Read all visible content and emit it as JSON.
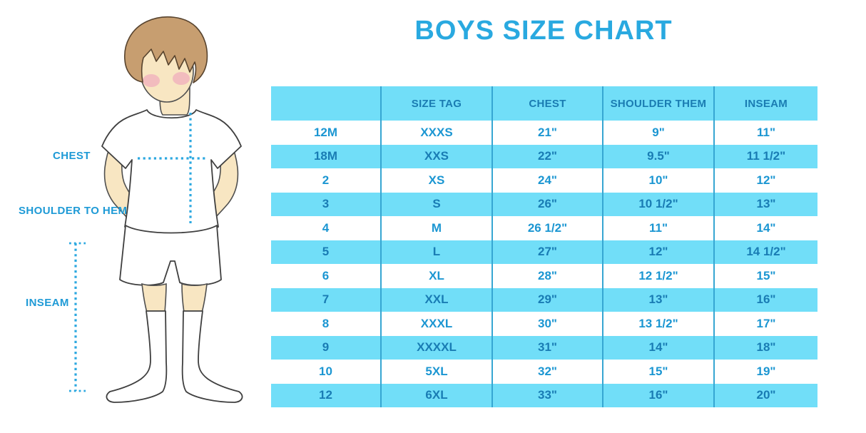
{
  "chart_data": {
    "type": "table",
    "title": "BOYS SIZE CHART",
    "columns": [
      "",
      "SIZE TAG",
      "CHEST",
      "SHOULDER THEM",
      "INSEAM"
    ],
    "rows": [
      [
        "12M",
        "XXXS",
        "21\"",
        "9\"",
        "11\""
      ],
      [
        "18M",
        "XXS",
        "22\"",
        "9.5\"",
        "11 1/2\""
      ],
      [
        "2",
        "XS",
        "24\"",
        "10\"",
        "12\""
      ],
      [
        "3",
        "S",
        "26\"",
        "10 1/2\"",
        "13\""
      ],
      [
        "4",
        "M",
        "26 1/2\"",
        "11\"",
        "14\""
      ],
      [
        "5",
        "L",
        "27\"",
        "12\"",
        "14 1/2\""
      ],
      [
        "6",
        "XL",
        "28\"",
        "12 1/2\"",
        "15\""
      ],
      [
        "7",
        "XXL",
        "29\"",
        "13\"",
        "16\""
      ],
      [
        "8",
        "XXXL",
        "30\"",
        "13 1/2\"",
        "17\""
      ],
      [
        "9",
        "XXXXL",
        "31\"",
        "14\"",
        "18\""
      ],
      [
        "10",
        "5XL",
        "32\"",
        "15\"",
        "19\""
      ],
      [
        "12",
        "6XL",
        "33\"",
        "16\"",
        "20\""
      ]
    ],
    "layout": {
      "header_position": "top",
      "zebra_striping": true
    }
  },
  "figure": {
    "labels": {
      "chest": "CHEST",
      "shoulder_to_hem": "SHOULDER TO HEM",
      "inseam": "INSEAM"
    }
  },
  "colors": {
    "title_blue": "#29a9e0",
    "band_blue": "#71def8",
    "header_text_blue": "#1a7cb2",
    "row_text_blue": "#1b96d2",
    "divider_blue": "#36a6d2",
    "dotted_line_blue": "#2ca8e0",
    "label_blue": "#1e9ad6",
    "skin": "#f8e6c2",
    "hair": "#c79e70",
    "cheek": "#efa9bc"
  }
}
